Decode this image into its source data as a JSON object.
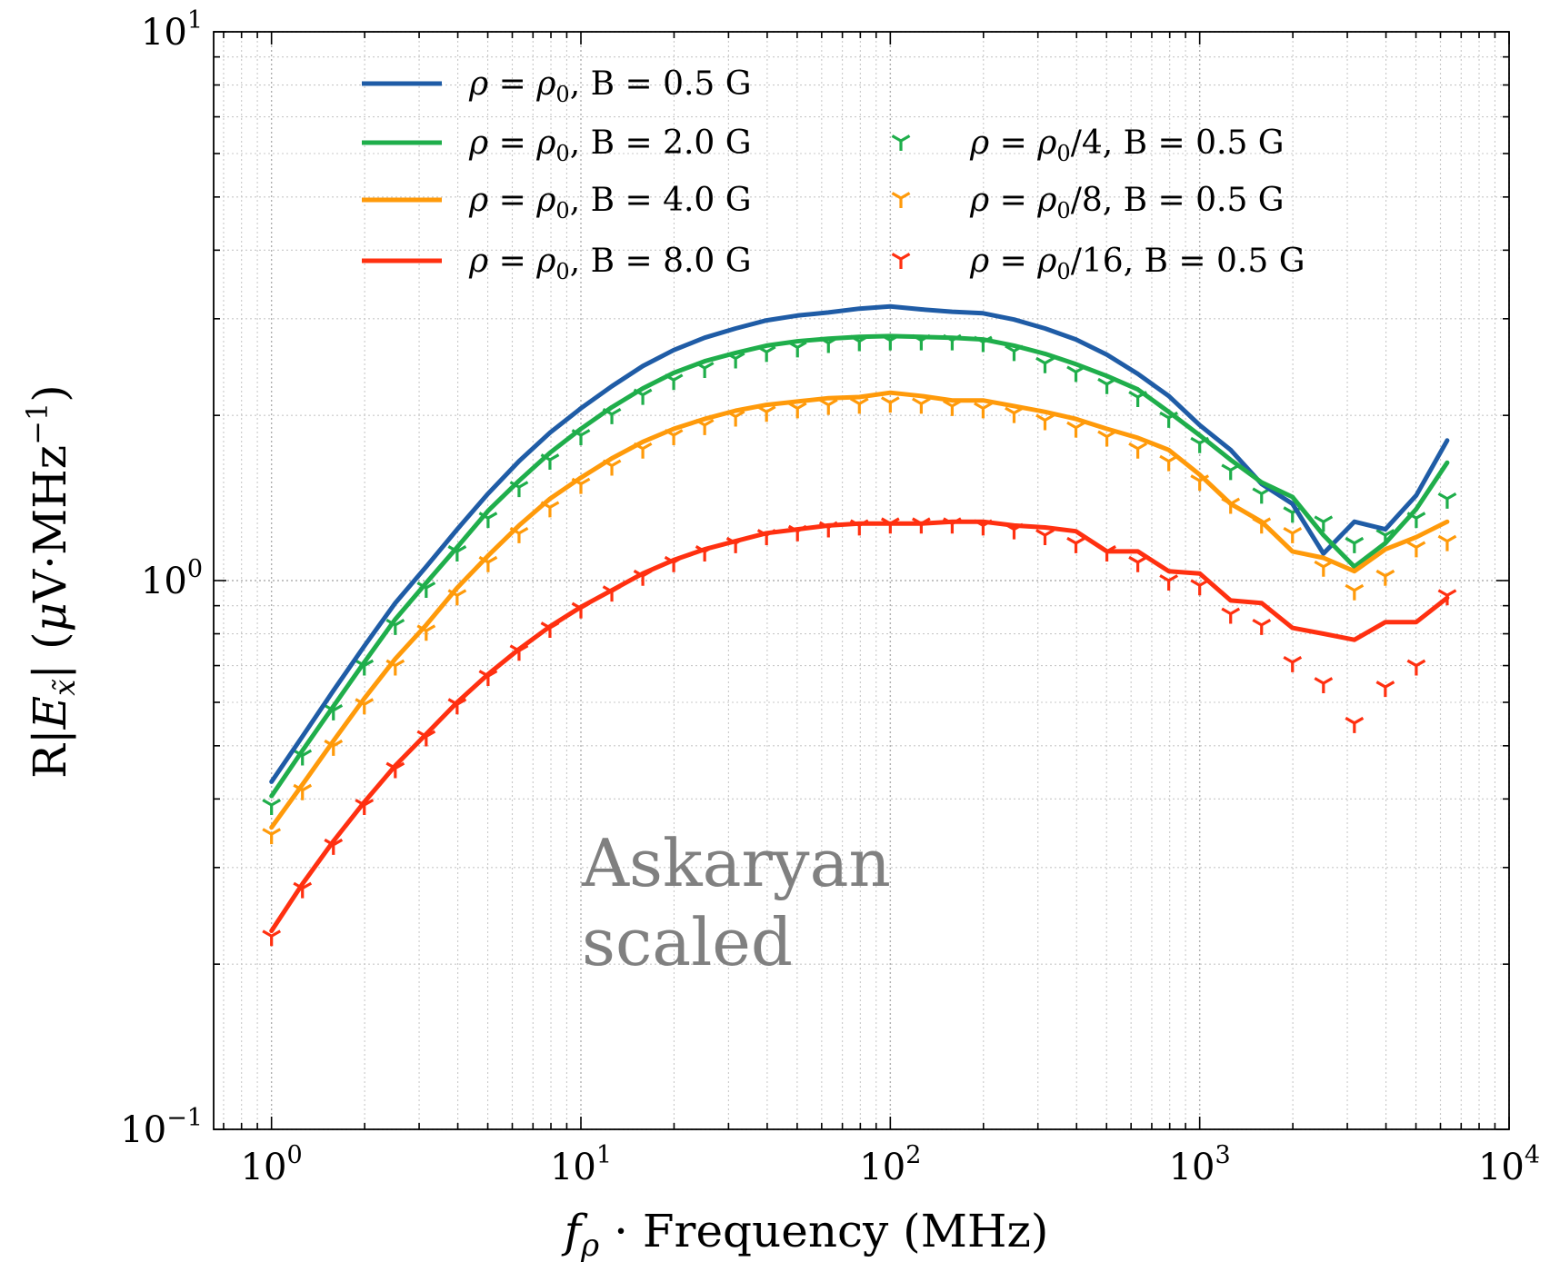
{
  "chart_data": {
    "type": "line",
    "xscale": "log",
    "yscale": "log",
    "xlim": [
      0.65,
      10000
    ],
    "ylim": [
      0.1,
      10
    ],
    "grid": true,
    "legend_placement": "upper-left",
    "xlabel_parts": {
      "f": "f",
      "sub": "ρ",
      "rest": " · Frequency (MHz)"
    },
    "ylabel_parts": {
      "pre": "R|",
      "E": "E",
      "sub": "x̃",
      "mid": "| (",
      "mu": "μ",
      "rest": "V·MHz",
      "sup": "−1",
      "close": ")"
    },
    "x_ticks": [
      {
        "value": 1,
        "base": "10",
        "exp": "0"
      },
      {
        "value": 10,
        "base": "10",
        "exp": "1"
      },
      {
        "value": 100,
        "base": "10",
        "exp": "2"
      },
      {
        "value": 1000,
        "base": "10",
        "exp": "3"
      },
      {
        "value": 10000,
        "base": "10",
        "exp": "4"
      }
    ],
    "y_ticks": [
      {
        "value": 0.1,
        "base": "10",
        "exp": "−1"
      },
      {
        "value": 1,
        "base": "10",
        "exp": "0"
      },
      {
        "value": 10,
        "base": "10",
        "exp": "1"
      }
    ],
    "annotation": {
      "lines": [
        "Askaryan",
        "scaled"
      ]
    },
    "x": [
      1.0,
      1.259,
      1.585,
      1.995,
      2.512,
      3.162,
      3.981,
      5.012,
      6.31,
      7.943,
      10.0,
      12.59,
      15.85,
      19.95,
      25.12,
      31.62,
      39.81,
      50.12,
      63.1,
      79.43,
      100.0,
      125.9,
      158.5,
      199.5,
      251.2,
      316.2,
      398.1,
      501.2,
      631.0,
      794.3,
      1000.0,
      1259.0,
      1585.0,
      1995.0,
      2512.0,
      3162.0,
      3981.0,
      5012.0,
      6310.0
    ],
    "series": [
      {
        "name": "ρ = ρ0, B = 0.5 G",
        "legend_parts": {
          "rho": "ρ",
          "eq": " = ",
          "rho0": "ρ",
          "sub": "0",
          "rest": ", B = 0.5 G"
        },
        "style": "line",
        "color": "#1f5ca6",
        "values": [
          0.43,
          0.52,
          0.63,
          0.76,
          0.91,
          1.06,
          1.24,
          1.44,
          1.65,
          1.86,
          2.06,
          2.26,
          2.46,
          2.63,
          2.77,
          2.88,
          2.98,
          3.04,
          3.08,
          3.13,
          3.16,
          3.12,
          3.09,
          3.07,
          2.99,
          2.88,
          2.75,
          2.58,
          2.38,
          2.17,
          1.92,
          1.73,
          1.5,
          1.38,
          1.12,
          1.28,
          1.24,
          1.43,
          1.8
        ]
      },
      {
        "name": "ρ = ρ0, B = 2.0 G",
        "legend_parts": {
          "rho": "ρ",
          "eq": " = ",
          "rho0": "ρ",
          "sub": "0",
          "rest": ", B = 2.0 G"
        },
        "style": "line",
        "color": "#1fae4b",
        "values": [
          0.405,
          0.49,
          0.59,
          0.71,
          0.85,
          0.99,
          1.15,
          1.34,
          1.52,
          1.71,
          1.89,
          2.07,
          2.24,
          2.39,
          2.51,
          2.6,
          2.68,
          2.73,
          2.76,
          2.78,
          2.79,
          2.78,
          2.77,
          2.75,
          2.68,
          2.59,
          2.48,
          2.36,
          2.23,
          2.03,
          1.84,
          1.66,
          1.51,
          1.42,
          1.21,
          1.06,
          1.17,
          1.35,
          1.64
        ]
      },
      {
        "name": "ρ = ρ0, B = 4.0 G",
        "legend_parts": {
          "rho": "ρ",
          "eq": " = ",
          "rho0": "ρ",
          "sub": "0",
          "rest": ", B = 4.0 G"
        },
        "style": "line",
        "color": "#ff9a0a",
        "values": [
          0.355,
          0.425,
          0.51,
          0.61,
          0.72,
          0.83,
          0.97,
          1.11,
          1.26,
          1.41,
          1.54,
          1.67,
          1.79,
          1.89,
          1.97,
          2.04,
          2.09,
          2.12,
          2.15,
          2.16,
          2.2,
          2.17,
          2.13,
          2.13,
          2.08,
          2.03,
          1.97,
          1.89,
          1.82,
          1.73,
          1.56,
          1.38,
          1.28,
          1.13,
          1.1,
          1.04,
          1.14,
          1.2,
          1.28
        ]
      },
      {
        "name": "ρ = ρ0, B = 8.0 G",
        "legend_parts": {
          "rho": "ρ",
          "eq": " = ",
          "rho0": "ρ",
          "sub": "0",
          "rest": ", B = 8.0 G"
        },
        "style": "line",
        "color": "#ff3010",
        "values": [
          0.23,
          0.28,
          0.335,
          0.395,
          0.46,
          0.525,
          0.6,
          0.675,
          0.75,
          0.825,
          0.895,
          0.96,
          1.03,
          1.09,
          1.14,
          1.18,
          1.22,
          1.24,
          1.26,
          1.27,
          1.27,
          1.27,
          1.28,
          1.28,
          1.26,
          1.25,
          1.23,
          1.13,
          1.13,
          1.04,
          1.03,
          0.92,
          0.91,
          0.82,
          0.8,
          0.78,
          0.84,
          0.84,
          0.93
        ]
      },
      {
        "name": "ρ = ρ0/4, B = 0.5 G",
        "legend_parts": {
          "rho": "ρ",
          "eq": " = ",
          "rho0": "ρ",
          "sub": "0",
          "rest": "/4, B = 0.5 G"
        },
        "style": "marker",
        "color": "#1fae4b",
        "values": [
          0.39,
          0.48,
          0.58,
          0.7,
          0.83,
          0.97,
          1.13,
          1.3,
          1.48,
          1.66,
          1.84,
          2.01,
          2.18,
          2.32,
          2.44,
          2.54,
          2.61,
          2.66,
          2.71,
          2.73,
          2.74,
          2.74,
          2.74,
          2.72,
          2.62,
          2.49,
          2.4,
          2.28,
          2.16,
          1.98,
          1.78,
          1.59,
          1.44,
          1.33,
          1.28,
          1.17,
          1.21,
          1.3,
          1.41
        ]
      },
      {
        "name": "ρ = ρ0/8, B = 0.5 G",
        "legend_parts": {
          "rho": "ρ",
          "eq": " = ",
          "rho0": "ρ",
          "sub": "0",
          "rest": "/8, B = 0.5 G"
        },
        "style": "marker",
        "color": "#ff9a0a",
        "values": [
          0.345,
          0.415,
          0.5,
          0.595,
          0.7,
          0.81,
          0.94,
          1.08,
          1.22,
          1.36,
          1.5,
          1.62,
          1.74,
          1.84,
          1.92,
          1.99,
          2.03,
          2.06,
          2.09,
          2.1,
          2.11,
          2.1,
          2.08,
          2.06,
          2.02,
          1.96,
          1.9,
          1.83,
          1.74,
          1.65,
          1.52,
          1.38,
          1.27,
          1.22,
          1.06,
          0.96,
          1.02,
          1.15,
          1.18
        ]
      },
      {
        "name": "ρ = ρ0/16, B = 0.5 G",
        "legend_parts": {
          "rho": "ρ",
          "eq": " = ",
          "rho0": "ρ",
          "sub": "0",
          "rest": "/16, B = 0.5 G"
        },
        "style": "marker",
        "color": "#ff3010",
        "values": [
          0.225,
          0.275,
          0.33,
          0.39,
          0.455,
          0.52,
          0.595,
          0.67,
          0.745,
          0.82,
          0.89,
          0.955,
          1.02,
          1.08,
          1.13,
          1.17,
          1.21,
          1.23,
          1.25,
          1.26,
          1.27,
          1.27,
          1.27,
          1.26,
          1.24,
          1.21,
          1.17,
          1.13,
          1.08,
          1.0,
          0.98,
          0.87,
          0.83,
          0.71,
          0.65,
          0.55,
          0.64,
          0.7,
          0.94
        ]
      }
    ]
  }
}
